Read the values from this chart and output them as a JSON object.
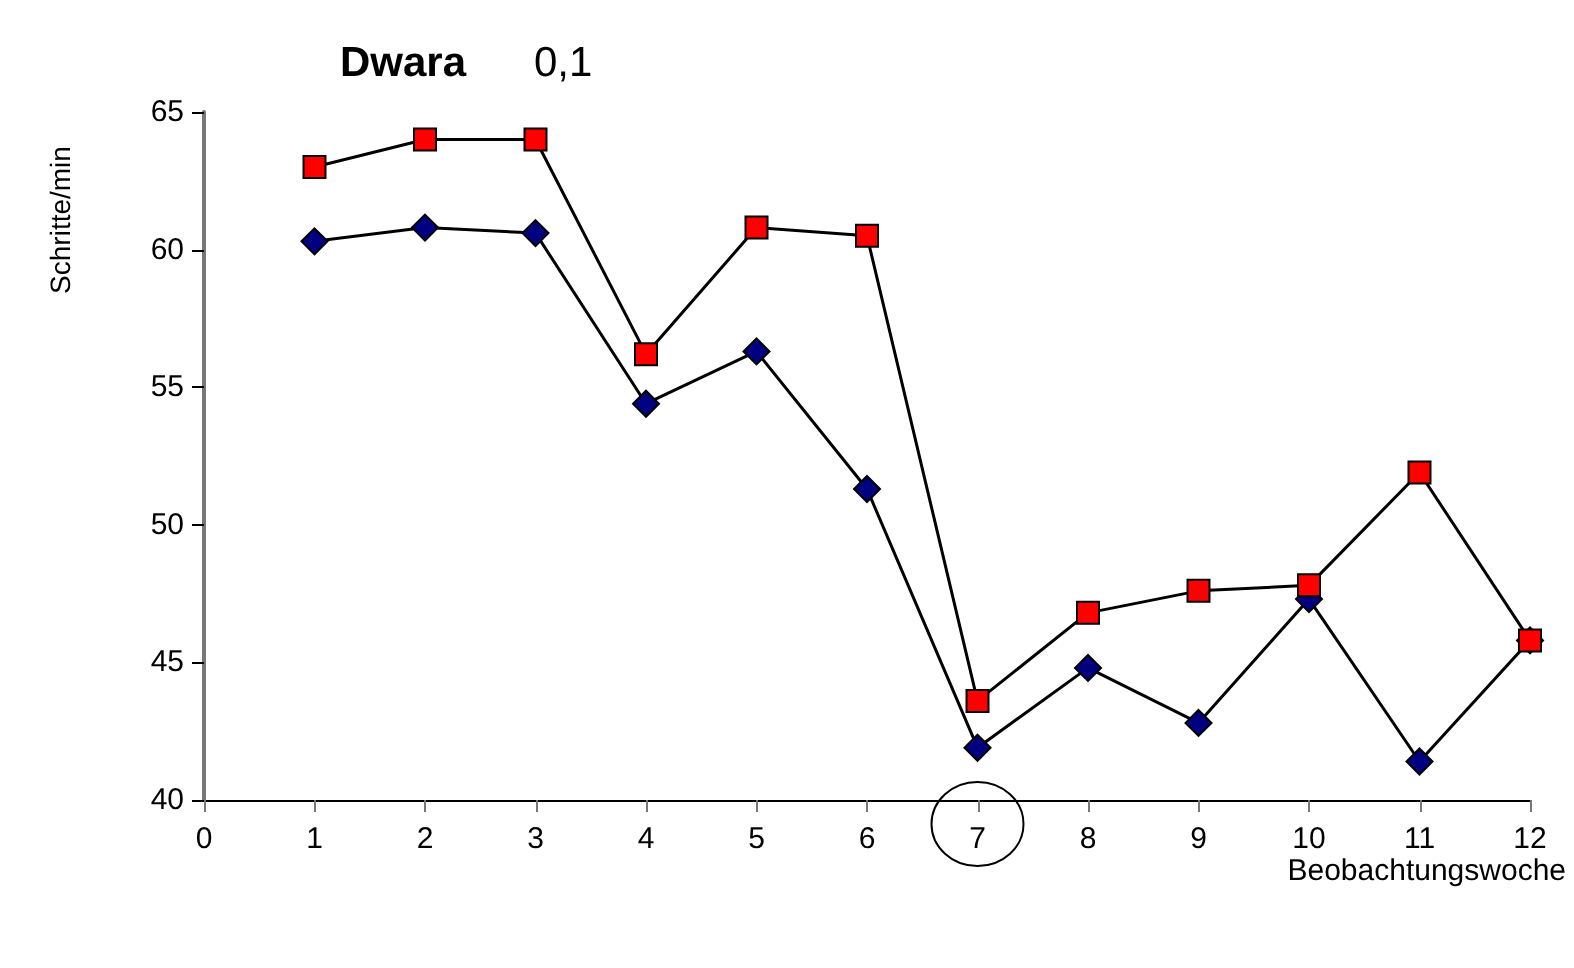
{
  "chart_data": {
    "type": "line",
    "title": "Dwara",
    "subtitle": "0,1",
    "xlabel": "Beobachtungswoche",
    "ylabel": "Schritte/min",
    "x": [
      1,
      2,
      3,
      4,
      5,
      6,
      7,
      8,
      9,
      10,
      11,
      12
    ],
    "series": [
      {
        "color": "#ff0000",
        "marker": "square",
        "values": [
          63,
          64,
          64,
          56.2,
          60.8,
          60.5,
          43.6,
          46.8,
          47.6,
          47.8,
          51.9,
          45.8
        ]
      },
      {
        "color": "#000080",
        "marker": "diamond",
        "values": [
          60.3,
          60.8,
          60.6,
          54.4,
          56.3,
          51.3,
          41.9,
          44.8,
          42.8,
          47.3,
          41.4,
          45.8
        ]
      }
    ],
    "xlim": [
      0,
      12
    ],
    "xticks": [
      0,
      1,
      2,
      3,
      4,
      5,
      6,
      7,
      8,
      9,
      10,
      11,
      12
    ],
    "ylim": [
      40,
      65
    ],
    "yticks": [
      40,
      45,
      50,
      55,
      60,
      65
    ],
    "grid": false,
    "line_style": "solid"
  }
}
